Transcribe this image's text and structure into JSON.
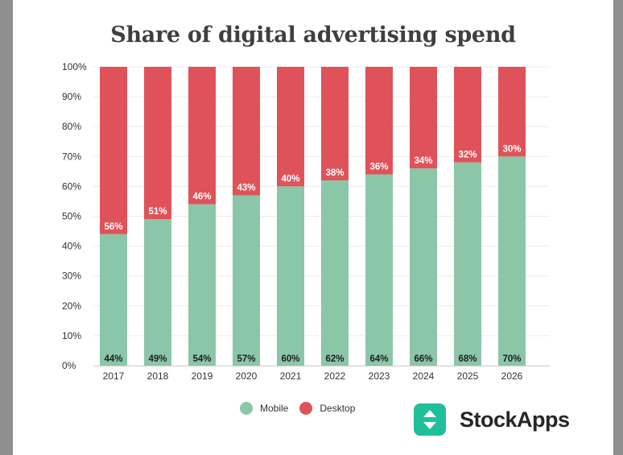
{
  "chart_data": {
    "type": "bar",
    "stacked": true,
    "title": "Share of digital advertising spend",
    "categories": [
      "2017",
      "2018",
      "2019",
      "2020",
      "2021",
      "2022",
      "2023",
      "2024",
      "2025",
      "2026"
    ],
    "series": [
      {
        "name": "Mobile",
        "color": "#8cc6a9",
        "values": [
          44,
          49,
          54,
          57,
          60,
          62,
          64,
          66,
          68,
          70
        ]
      },
      {
        "name": "Desktop",
        "color": "#e0525a",
        "values": [
          56,
          51,
          46,
          43,
          40,
          38,
          36,
          34,
          32,
          30
        ]
      }
    ],
    "ylim": [
      0,
      100
    ],
    "yticks": [
      "0%",
      "10%",
      "20%",
      "30%",
      "40%",
      "50%",
      "60%",
      "70%",
      "80%",
      "90%",
      "100%"
    ],
    "value_suffix": "%",
    "grid": true,
    "legend": "bottom"
  },
  "brand": {
    "name": "StockApps",
    "icon": "up-down-arrows-icon",
    "color": "#1fbf9a"
  }
}
